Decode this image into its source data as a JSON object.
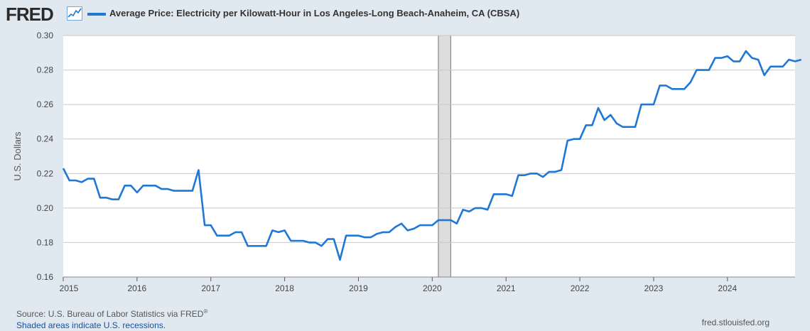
{
  "header": {
    "logo_text": "FRED",
    "logo_icon": "line-chart-icon",
    "series_title": "Average Price: Electricity per Kilowatt-Hour in Los Angeles-Long Beach-Anaheim, CA (CBSA)"
  },
  "footer": {
    "source_text": "Source: U.S. Bureau of Labor Statistics via FRED",
    "source_mark": "®",
    "recession_note": "Shaded areas indicate U.S. recessions.",
    "site": "fred.stlouisfed.org"
  },
  "colors": {
    "series": "#1f77d6",
    "background": "#e1e9f0",
    "plot": "#ffffff",
    "grid": "#c8c8c8",
    "recession": "#dddddd"
  },
  "chart_data": {
    "type": "line",
    "title": "Average Price: Electricity per Kilowatt-Hour in Los Angeles-Long Beach-Anaheim, CA (CBSA)",
    "xlabel": "",
    "ylabel": "U.S. Dollars",
    "ylim": [
      0.16,
      0.3
    ],
    "yticks": [
      "0.16",
      "0.18",
      "0.20",
      "0.22",
      "0.24",
      "0.26",
      "0.28",
      "0.30"
    ],
    "xlim": [
      2015.0,
      2024.9167
    ],
    "xticks": [
      {
        "value": 2015,
        "label": "2015"
      },
      {
        "value": 2016,
        "label": "2016"
      },
      {
        "value": 2017,
        "label": "2017"
      },
      {
        "value": 2018,
        "label": "2018"
      },
      {
        "value": 2019,
        "label": "2019"
      },
      {
        "value": 2020,
        "label": "2020"
      },
      {
        "value": 2021,
        "label": "2021"
      },
      {
        "value": 2022,
        "label": "2022"
      },
      {
        "value": 2023,
        "label": "2023"
      },
      {
        "value": 2024,
        "label": "2024"
      }
    ],
    "recessions": [
      {
        "start": 2020.083,
        "end": 2020.25
      }
    ],
    "grid": true,
    "series": [
      {
        "name": "Average Price: Electricity per Kilowatt-Hour in Los Angeles-Long Beach-Anaheim, CA (CBSA)",
        "start": 2015.0,
        "step_months": 1,
        "values": [
          0.223,
          0.216,
          0.216,
          0.215,
          0.217,
          0.217,
          0.206,
          0.206,
          0.205,
          0.205,
          0.213,
          0.213,
          0.209,
          0.213,
          0.213,
          0.213,
          0.211,
          0.211,
          0.21,
          0.21,
          0.21,
          0.21,
          0.222,
          0.19,
          0.19,
          0.184,
          0.184,
          0.184,
          0.186,
          0.186,
          0.178,
          0.178,
          0.178,
          0.178,
          0.187,
          0.186,
          0.187,
          0.181,
          0.181,
          0.181,
          0.18,
          0.18,
          0.178,
          0.182,
          0.182,
          0.17,
          0.184,
          0.184,
          0.184,
          0.183,
          0.183,
          0.185,
          0.186,
          0.186,
          0.189,
          0.191,
          0.187,
          0.188,
          0.19,
          0.19,
          0.19,
          0.193,
          0.193,
          0.193,
          0.191,
          0.199,
          0.198,
          0.2,
          0.2,
          0.199,
          0.208,
          0.208,
          0.208,
          0.207,
          0.219,
          0.219,
          0.22,
          0.22,
          0.218,
          0.221,
          0.221,
          0.222,
          0.239,
          0.24,
          0.24,
          0.248,
          0.248,
          0.258,
          0.251,
          0.254,
          0.249,
          0.247,
          0.247,
          0.247,
          0.26,
          0.26,
          0.26,
          0.271,
          0.271,
          0.269,
          0.269,
          0.269,
          0.273,
          0.28,
          0.28,
          0.28,
          0.287,
          0.287,
          0.288,
          0.285,
          0.285,
          0.291,
          0.287,
          0.286,
          0.277,
          0.282,
          0.282,
          0.282,
          0.286,
          0.285,
          0.286
        ]
      }
    ]
  }
}
